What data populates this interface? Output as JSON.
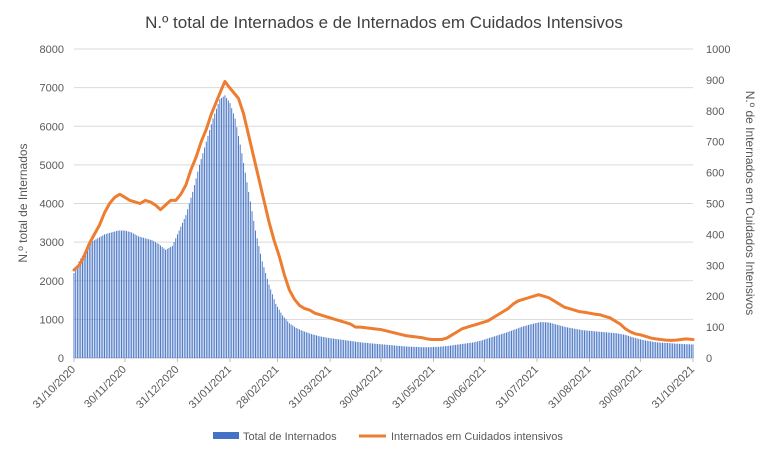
{
  "chart_data": {
    "type": "bar+line",
    "title": "N.º total de  Internados e de Internados em Cuidados Intensivos",
    "ylabel_left": "N.º total de Internados",
    "ylabel_right": "N.º de Internados em Cuidados Intensivos",
    "ylim_left": [
      0,
      8000
    ],
    "ylim_right": [
      0,
      1000
    ],
    "yticks_left": [
      "0",
      "1000",
      "2000",
      "3000",
      "4000",
      "5000",
      "6000",
      "7000",
      "8000"
    ],
    "yticks_right": [
      "0",
      "100",
      "200",
      "300",
      "400",
      "500",
      "600",
      "700",
      "800",
      "900",
      "1000"
    ],
    "x_ticks": [
      "31/10/2020",
      "30/11/2020",
      "31/12/2020",
      "31/01/2021",
      "28/02/2021",
      "31/03/2021",
      "30/04/2021",
      "31/05/2021",
      "30/06/2021",
      "31/07/2021",
      "31/08/2021",
      "30/09/2021",
      "31/10/2021"
    ],
    "x_tick_days": [
      0,
      30,
      61,
      92,
      120,
      151,
      181,
      212,
      242,
      273,
      304,
      334,
      365
    ],
    "grid": true,
    "legend_position": "bottom",
    "series": [
      {
        "name": "Total de Internados",
        "type": "bar",
        "axis": "left",
        "color": "#4472C4",
        "points": [
          [
            0,
            2200
          ],
          [
            3,
            2500
          ],
          [
            7,
            2800
          ],
          [
            10,
            3000
          ],
          [
            14,
            3100
          ],
          [
            18,
            3200
          ],
          [
            22,
            3250
          ],
          [
            26,
            3300
          ],
          [
            30,
            3300
          ],
          [
            34,
            3250
          ],
          [
            38,
            3150
          ],
          [
            42,
            3100
          ],
          [
            46,
            3050
          ],
          [
            50,
            2950
          ],
          [
            54,
            2800
          ],
          [
            58,
            2900
          ],
          [
            62,
            3300
          ],
          [
            66,
            3700
          ],
          [
            70,
            4300
          ],
          [
            74,
            5000
          ],
          [
            78,
            5600
          ],
          [
            82,
            6200
          ],
          [
            86,
            6700
          ],
          [
            89,
            6800
          ],
          [
            92,
            6600
          ],
          [
            95,
            6200
          ],
          [
            99,
            5300
          ],
          [
            103,
            4300
          ],
          [
            107,
            3300
          ],
          [
            111,
            2500
          ],
          [
            115,
            1900
          ],
          [
            119,
            1400
          ],
          [
            123,
            1100
          ],
          [
            127,
            900
          ],
          [
            131,
            780
          ],
          [
            135,
            700
          ],
          [
            140,
            620
          ],
          [
            145,
            560
          ],
          [
            150,
            520
          ],
          [
            155,
            490
          ],
          [
            160,
            460
          ],
          [
            165,
            430
          ],
          [
            170,
            400
          ],
          [
            175,
            380
          ],
          [
            180,
            360
          ],
          [
            185,
            340
          ],
          [
            190,
            320
          ],
          [
            195,
            300
          ],
          [
            200,
            290
          ],
          [
            205,
            280
          ],
          [
            210,
            280
          ],
          [
            215,
            290
          ],
          [
            220,
            310
          ],
          [
            225,
            340
          ],
          [
            230,
            370
          ],
          [
            235,
            400
          ],
          [
            240,
            450
          ],
          [
            245,
            520
          ],
          [
            250,
            590
          ],
          [
            255,
            660
          ],
          [
            260,
            740
          ],
          [
            265,
            820
          ],
          [
            270,
            880
          ],
          [
            275,
            930
          ],
          [
            280,
            920
          ],
          [
            285,
            860
          ],
          [
            290,
            800
          ],
          [
            295,
            760
          ],
          [
            300,
            720
          ],
          [
            305,
            700
          ],
          [
            310,
            680
          ],
          [
            315,
            660
          ],
          [
            320,
            640
          ],
          [
            325,
            600
          ],
          [
            330,
            530
          ],
          [
            335,
            470
          ],
          [
            340,
            430
          ],
          [
            345,
            400
          ],
          [
            350,
            390
          ],
          [
            355,
            370
          ],
          [
            360,
            360
          ],
          [
            365,
            350
          ]
        ]
      },
      {
        "name": "Internados em Cuidados intensivos",
        "type": "line",
        "axis": "right",
        "color": "#ED7D31",
        "points": [
          [
            0,
            285
          ],
          [
            3,
            300
          ],
          [
            6,
            330
          ],
          [
            9,
            370
          ],
          [
            12,
            400
          ],
          [
            15,
            430
          ],
          [
            18,
            470
          ],
          [
            21,
            500
          ],
          [
            24,
            520
          ],
          [
            27,
            530
          ],
          [
            30,
            520
          ],
          [
            33,
            510
          ],
          [
            36,
            505
          ],
          [
            39,
            500
          ],
          [
            42,
            510
          ],
          [
            45,
            505
          ],
          [
            48,
            495
          ],
          [
            51,
            480
          ],
          [
            54,
            495
          ],
          [
            57,
            510
          ],
          [
            60,
            510
          ],
          [
            63,
            530
          ],
          [
            66,
            560
          ],
          [
            69,
            610
          ],
          [
            72,
            650
          ],
          [
            75,
            700
          ],
          [
            78,
            740
          ],
          [
            81,
            790
          ],
          [
            84,
            830
          ],
          [
            87,
            870
          ],
          [
            89,
            895
          ],
          [
            91,
            880
          ],
          [
            94,
            860
          ],
          [
            97,
            840
          ],
          [
            100,
            790
          ],
          [
            103,
            720
          ],
          [
            106,
            650
          ],
          [
            109,
            580
          ],
          [
            112,
            510
          ],
          [
            115,
            440
          ],
          [
            118,
            380
          ],
          [
            121,
            330
          ],
          [
            124,
            270
          ],
          [
            127,
            220
          ],
          [
            130,
            190
          ],
          [
            133,
            170
          ],
          [
            136,
            160
          ],
          [
            139,
            155
          ],
          [
            142,
            145
          ],
          [
            145,
            140
          ],
          [
            148,
            135
          ],
          [
            151,
            130
          ],
          [
            154,
            125
          ],
          [
            157,
            120
          ],
          [
            160,
            115
          ],
          [
            163,
            110
          ],
          [
            166,
            100
          ],
          [
            169,
            100
          ],
          [
            172,
            98
          ],
          [
            175,
            96
          ],
          [
            178,
            94
          ],
          [
            181,
            92
          ],
          [
            184,
            88
          ],
          [
            187,
            84
          ],
          [
            190,
            80
          ],
          [
            193,
            76
          ],
          [
            196,
            72
          ],
          [
            199,
            70
          ],
          [
            202,
            68
          ],
          [
            205,
            66
          ],
          [
            208,
            62
          ],
          [
            211,
            60
          ],
          [
            214,
            60
          ],
          [
            217,
            60
          ],
          [
            220,
            65
          ],
          [
            223,
            75
          ],
          [
            226,
            85
          ],
          [
            229,
            95
          ],
          [
            232,
            100
          ],
          [
            235,
            105
          ],
          [
            238,
            110
          ],
          [
            241,
            115
          ],
          [
            244,
            120
          ],
          [
            247,
            130
          ],
          [
            250,
            140
          ],
          [
            253,
            150
          ],
          [
            256,
            160
          ],
          [
            259,
            175
          ],
          [
            262,
            185
          ],
          [
            265,
            190
          ],
          [
            268,
            195
          ],
          [
            271,
            200
          ],
          [
            274,
            205
          ],
          [
            277,
            200
          ],
          [
            280,
            195
          ],
          [
            283,
            185
          ],
          [
            286,
            175
          ],
          [
            289,
            165
          ],
          [
            292,
            160
          ],
          [
            295,
            155
          ],
          [
            298,
            150
          ],
          [
            301,
            148
          ],
          [
            304,
            145
          ],
          [
            307,
            142
          ],
          [
            310,
            140
          ],
          [
            313,
            135
          ],
          [
            316,
            130
          ],
          [
            319,
            120
          ],
          [
            322,
            110
          ],
          [
            325,
            95
          ],
          [
            328,
            85
          ],
          [
            331,
            78
          ],
          [
            334,
            75
          ],
          [
            337,
            70
          ],
          [
            340,
            65
          ],
          [
            343,
            62
          ],
          [
            346,
            60
          ],
          [
            349,
            58
          ],
          [
            352,
            57
          ],
          [
            355,
            58
          ],
          [
            358,
            60
          ],
          [
            361,
            62
          ],
          [
            365,
            60
          ]
        ]
      }
    ]
  }
}
